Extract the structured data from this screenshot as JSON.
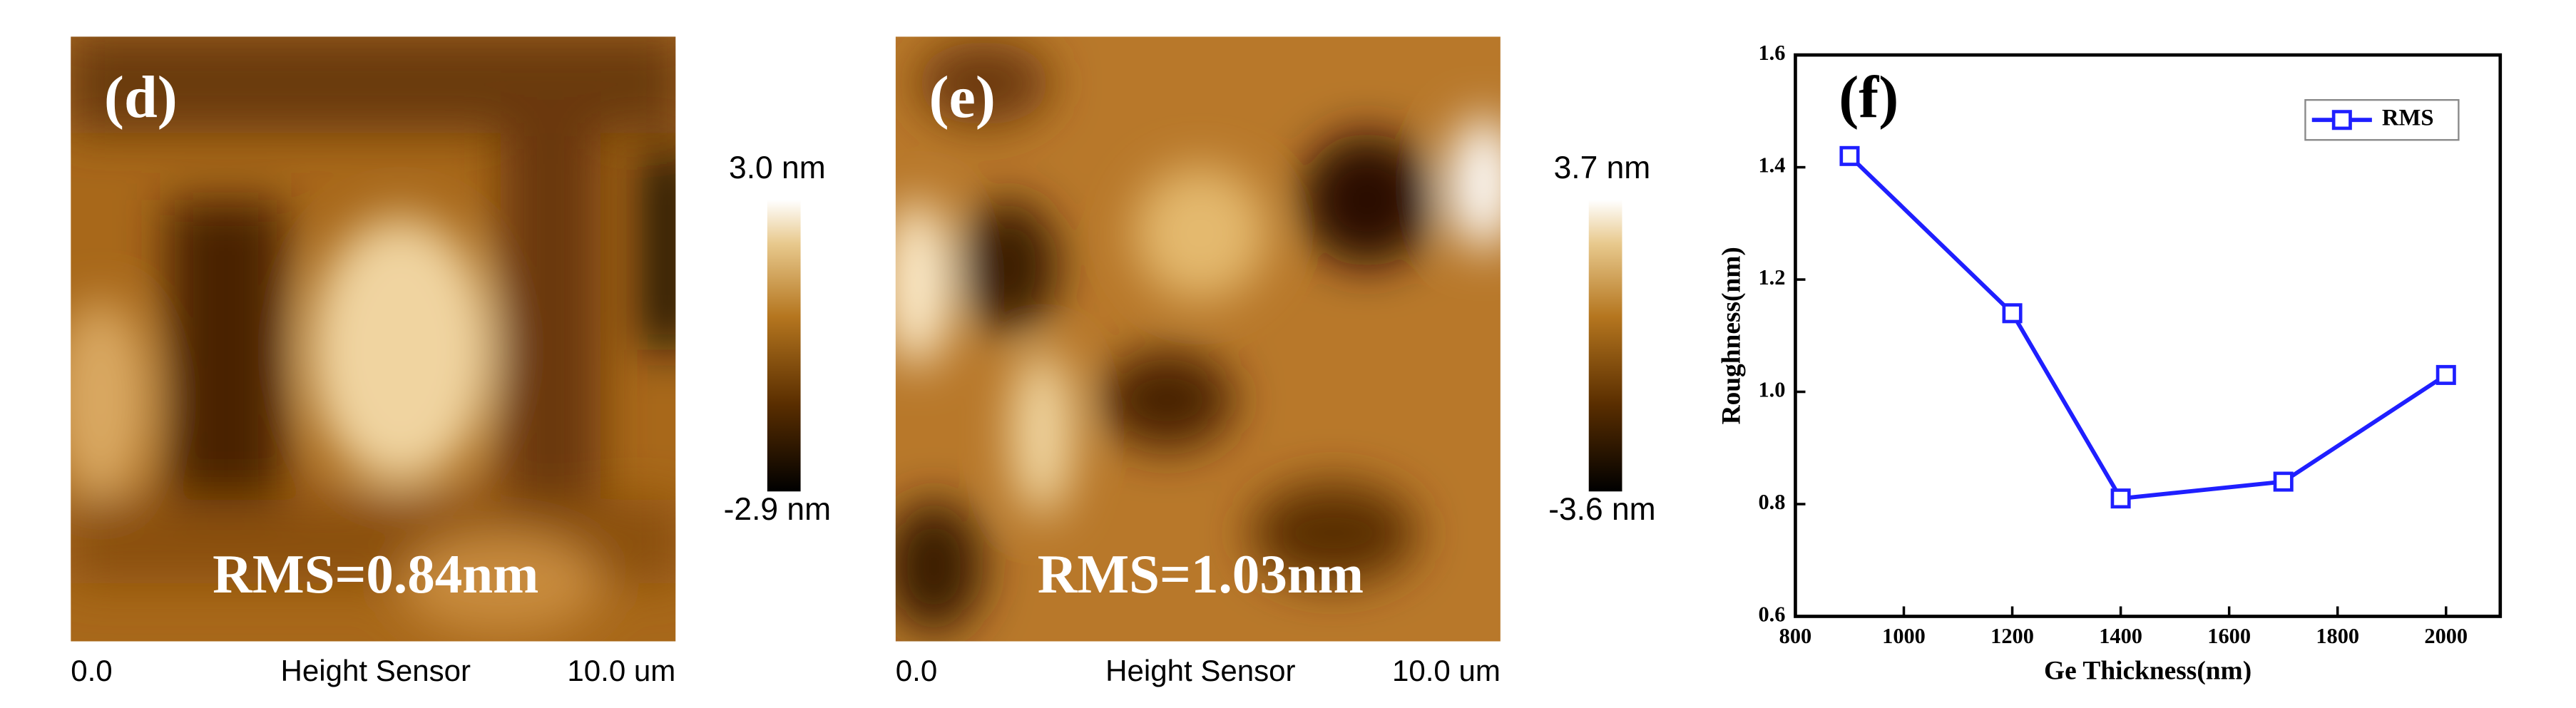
{
  "panels": [
    {
      "label": "(d)",
      "rms": "RMS=0.84nm",
      "scale_max": "3.0 nm",
      "scale_min": "-2.9 nm",
      "axis_start": "0.0",
      "axis_title": "Height Sensor",
      "axis_end": "10.0 um"
    },
    {
      "label": "(e)",
      "rms": "RMS=1.03nm",
      "scale_max": "3.7 nm",
      "scale_min": "-3.6 nm",
      "axis_start": "0.0",
      "axis_title": "Height Sensor",
      "axis_end": "10.0 um"
    }
  ],
  "chart_data": {
    "type": "line",
    "title": "(f)",
    "x_label": "Ge Thickness(nm)",
    "y_label": "Roughness(nm)",
    "x": [
      900,
      1200,
      1400,
      1700,
      2000
    ],
    "series": [
      {
        "name": "RMS",
        "color": "#1f1fff",
        "values": [
          1.42,
          1.14,
          0.81,
          0.84,
          1.03
        ]
      }
    ],
    "xlim": [
      800,
      2100
    ],
    "xticks": [
      800,
      1000,
      1200,
      1400,
      1600,
      1800,
      2000
    ],
    "ylim": [
      0.6,
      1.6
    ],
    "yticks": [
      0.6,
      0.8,
      {
        "value": 1,
        "label": "1.0"
      },
      1.2,
      1.4,
      1.6
    ],
    "legend": "upper right"
  }
}
